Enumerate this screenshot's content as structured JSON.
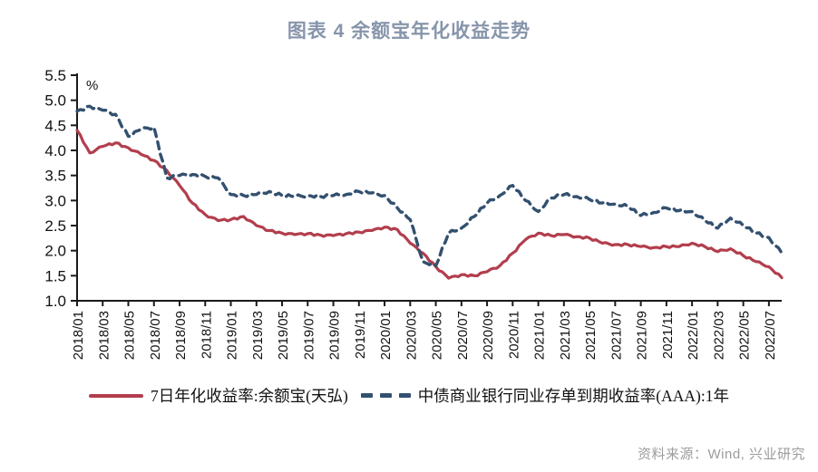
{
  "title": "图表 4 余额宝年化收益走势",
  "source": "资料来源：Wind, 兴业研究",
  "colors": {
    "title_text": "#8795ab",
    "source_text": "#9c9c9c",
    "axis": "#1a1a1a",
    "series_red": "#b23e4d",
    "series_blue": "#33506f"
  },
  "chart_data": {
    "type": "line",
    "title": "图表 4 余额宝年化收益走势",
    "unit_label": "%",
    "grid": false,
    "legend_position": "bottom",
    "ylim": [
      1.0,
      5.5
    ],
    "ytick_step": 0.5,
    "xtick_every": 2,
    "x": [
      "2018/01",
      "2018/02",
      "2018/03",
      "2018/04",
      "2018/05",
      "2018/06",
      "2018/07",
      "2018/08",
      "2018/09",
      "2018/10",
      "2018/11",
      "2018/12",
      "2019/01",
      "2019/02",
      "2019/03",
      "2019/04",
      "2019/05",
      "2019/06",
      "2019/07",
      "2019/08",
      "2019/09",
      "2019/10",
      "2019/11",
      "2019/12",
      "2020/01",
      "2020/02",
      "2020/03",
      "2020/04",
      "2020/05",
      "2020/06",
      "2020/07",
      "2020/08",
      "2020/09",
      "2020/10",
      "2020/11",
      "2020/12",
      "2021/01",
      "2021/02",
      "2021/03",
      "2021/04",
      "2021/05",
      "2021/06",
      "2021/07",
      "2021/08",
      "2021/09",
      "2021/10",
      "2021/11",
      "2021/12",
      "2022/01",
      "2022/02",
      "2022/03",
      "2022/04",
      "2022/05",
      "2022/06",
      "2022/07",
      "2022/08"
    ],
    "series": [
      {
        "name": "7日年化收益率:余额宝(天弘)",
        "color": "#b23e4d",
        "style": "solid",
        "values": [
          4.4,
          3.95,
          4.08,
          4.15,
          4.05,
          3.92,
          3.8,
          3.6,
          3.3,
          2.95,
          2.72,
          2.6,
          2.62,
          2.68,
          2.5,
          2.4,
          2.35,
          2.32,
          2.34,
          2.31,
          2.3,
          2.34,
          2.37,
          2.4,
          2.47,
          2.42,
          2.15,
          1.95,
          1.68,
          1.45,
          1.52,
          1.5,
          1.58,
          1.7,
          1.95,
          2.22,
          2.35,
          2.3,
          2.32,
          2.28,
          2.25,
          2.15,
          2.12,
          2.12,
          2.08,
          2.06,
          2.08,
          2.08,
          2.15,
          2.08,
          1.98,
          2.04,
          1.9,
          1.78,
          1.68,
          1.46
        ]
      },
      {
        "name": "中债商业银行同业存单到期收益率(AAA):1年",
        "color": "#33506f",
        "style": "dashed",
        "values": [
          4.78,
          4.88,
          4.8,
          4.72,
          4.28,
          4.42,
          4.46,
          3.45,
          3.5,
          3.52,
          3.48,
          3.45,
          3.12,
          3.1,
          3.12,
          3.18,
          3.1,
          3.08,
          3.1,
          3.08,
          3.1,
          3.12,
          3.18,
          3.15,
          3.1,
          2.85,
          2.62,
          1.78,
          1.7,
          2.35,
          2.45,
          2.68,
          2.95,
          3.1,
          3.3,
          3.0,
          2.78,
          3.05,
          3.12,
          3.08,
          3.02,
          2.95,
          2.93,
          2.88,
          2.7,
          2.76,
          2.85,
          2.8,
          2.78,
          2.6,
          2.45,
          2.65,
          2.5,
          2.35,
          2.26,
          1.95
        ]
      }
    ]
  }
}
